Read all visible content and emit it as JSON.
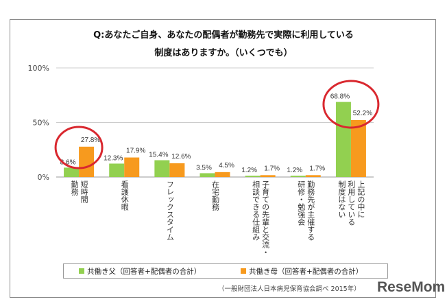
{
  "chart_data": {
    "type": "bar",
    "title": "Q:あなたご自身、あなたの配偶者が勤務先で実際に利用している",
    "title_line2": "制度はありますか。（いくつでも）",
    "ylim": [
      0,
      100
    ],
    "yticks": [
      "0%",
      "50%",
      "100%"
    ],
    "grid": true,
    "legend_placement": "bottom",
    "categories": [
      "短時間\n勤務",
      "看護休暇",
      "フレックスタイム",
      "在宅勤務",
      "子育ての先輩と交流・\n相談できる仕組み",
      "勤務先が主催する\n研修・勉強会",
      "上記の中に\n利用している\n制度はない"
    ],
    "series": [
      {
        "name": "共働き父（回答者+配偶者の合計）",
        "values": [
          8.6,
          12.3,
          15.4,
          3.5,
          1.2,
          1.2,
          68.8
        ],
        "color": "#92d050"
      },
      {
        "name": "共働き母（回答者+配偶者の合計）",
        "values": [
          27.8,
          17.9,
          12.6,
          4.5,
          1.7,
          1.7,
          52.2
        ],
        "color": "#f79a1e"
      }
    ],
    "highlight_color": "#d9282f"
  },
  "footnote": "（一般財団法人日本病児保育協会調べ 2015年）",
  "watermark": "ReseMom"
}
